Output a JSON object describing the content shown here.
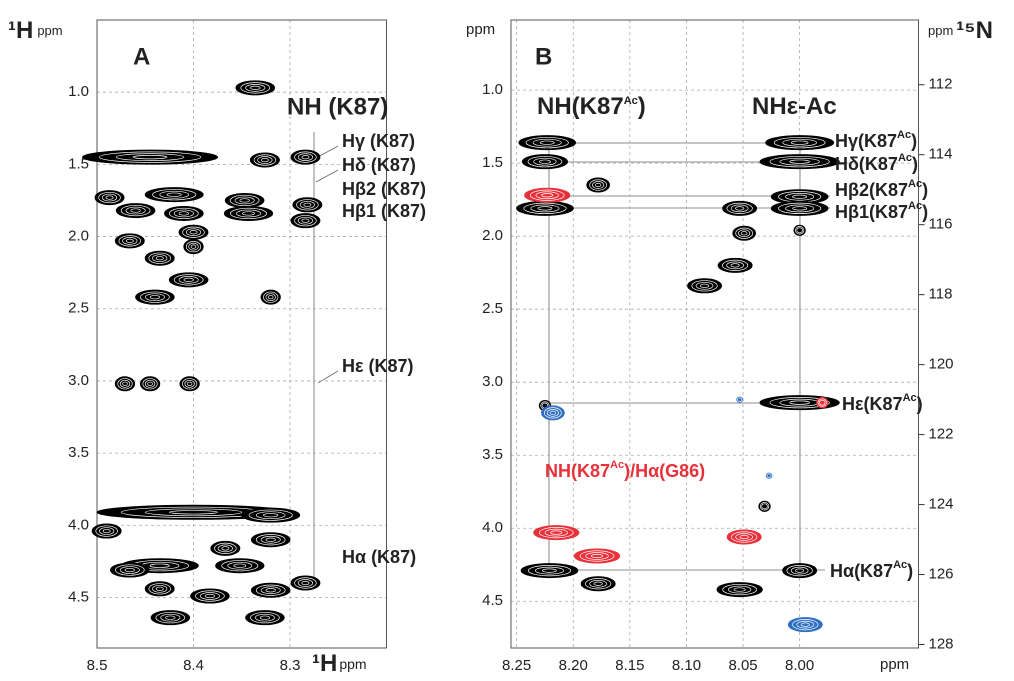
{
  "chart_data": [
    {
      "type": "contour",
      "panel_label": "A",
      "y_label": {
        "nucleus": "¹H",
        "unit": "ppm"
      },
      "x_label": {
        "nucleus": "¹H",
        "unit": "ppm"
      },
      "xlim": [
        8.5,
        8.2
      ],
      "ylim": [
        0.5,
        4.85
      ],
      "xticks": [
        8.5,
        8.4,
        8.3
      ],
      "yticks": [
        {
          "value": 1,
          "label": "1.0"
        },
        1.5,
        {
          "value": 2,
          "label": "2.0"
        },
        2.5,
        {
          "value": 3,
          "label": "3.0"
        },
        3.5,
        {
          "value": 4,
          "label": "4.0"
        },
        4.5
      ],
      "grid": true,
      "annotations": [
        "NH (K87)",
        "Hγ (K87)",
        "Hδ (K87)",
        "Hβ2 (K87)",
        "Hβ1 (K87)",
        "Hε (K87)",
        "Hα (K87)"
      ],
      "series": [
        {
          "color": "#000000",
          "x": [
            8.336,
            8.445,
            8.326,
            8.284,
            8.487,
            8.42,
            8.46,
            8.41,
            8.347,
            8.343,
            8.282,
            8.284,
            8.4,
            8.466,
            8.4,
            8.435,
            8.405,
            8.44,
            8.32,
            8.471,
            8.445,
            8.404,
            8.4,
            8.32,
            8.49,
            8.32,
            8.367,
            8.435,
            8.466,
            8.352,
            8.284,
            8.435,
            8.383,
            8.32,
            8.424,
            8.326
          ],
          "y": [
            0.97,
            1.45,
            1.47,
            1.45,
            1.73,
            1.71,
            1.82,
            1.84,
            1.75,
            1.84,
            1.78,
            1.89,
            1.97,
            2.03,
            2.07,
            2.15,
            2.3,
            2.42,
            2.42,
            3.02,
            3.02,
            3.02,
            3.91,
            3.93,
            4.04,
            4.1,
            4.16,
            4.28,
            4.31,
            4.28,
            4.4,
            4.44,
            4.49,
            4.45,
            4.64,
            4.64
          ],
          "widths": [
            0.04,
            0.14,
            0.03,
            0.03,
            0.03,
            0.06,
            0.04,
            0.04,
            0.04,
            0.05,
            0.03,
            0.03,
            0.03,
            0.03,
            0.02,
            0.03,
            0.04,
            0.04,
            0.02,
            0.02,
            0.02,
            0.02,
            0.2,
            0.06,
            0.03,
            0.04,
            0.03,
            0.08,
            0.04,
            0.05,
            0.03,
            0.03,
            0.04,
            0.04,
            0.04,
            0.04
          ]
        }
      ]
    },
    {
      "type": "contour",
      "panel_label": "B",
      "y_label": "ppm",
      "x_label": "ppm",
      "y2_label": {
        "unit": "ppm",
        "nucleus": "¹⁵N"
      },
      "xlim": [
        8.255,
        7.895
      ],
      "ylim": [
        0.52,
        4.82
      ],
      "y2lim": [
        110.15,
        128.1
      ],
      "xticks": [
        8.25,
        {
          "value": 8.2,
          "label": "8.20"
        },
        8.15,
        {
          "value": 8.1,
          "label": "8.10"
        },
        8.05,
        {
          "value": 8,
          "label": "8.00"
        }
      ],
      "yticks": [
        {
          "value": 1,
          "label": "1.0"
        },
        1.5,
        {
          "value": 2,
          "label": "2.0"
        },
        2.5,
        {
          "value": 3,
          "label": "3.0"
        },
        3.5,
        {
          "value": 4,
          "label": "4.0"
        },
        4.5
      ],
      "y2ticks": [
        112,
        114,
        116,
        118,
        120,
        122,
        124,
        126,
        128
      ],
      "grid": true,
      "annotations": [
        {
          "parts": [
            "NH(K87",
            "Ac",
            ")"
          ]
        },
        {
          "parts": [
            "NHε-Ac"
          ]
        },
        {
          "parts": [
            "Hγ(K87",
            "Ac",
            ")"
          ]
        },
        {
          "parts": [
            "Hδ(K87",
            "Ac",
            ")"
          ]
        },
        {
          "parts": [
            "Hβ2(K87",
            "Ac",
            ")"
          ]
        },
        {
          "parts": [
            "Hβ1(K87",
            "Ac",
            ")"
          ]
        },
        {
          "parts": [
            "Hε(K87",
            "Ac",
            ")"
          ]
        },
        {
          "parts": [
            "Hα(K87",
            "Ac",
            ")"
          ]
        },
        {
          "parts": [
            "NH(K87",
            "Ac",
            ")/Hα(G86)"
          ]
        }
      ],
      "series": [
        {
          "color": "#000000",
          "x": [
            8.223,
            8.225,
            8.0,
            8.0,
            8.178,
            8.0,
            8.0,
            8.225,
            8.053,
            8.049,
            8.0,
            8.057,
            8.084,
            8.0,
            8.225,
            8.221,
            8.178,
            8.053,
            8.0,
            8.031
          ],
          "y": [
            1.36,
            1.49,
            1.36,
            1.49,
            1.65,
            1.73,
            1.81,
            1.81,
            1.81,
            1.98,
            1.96,
            2.2,
            2.34,
            3.14,
            3.16,
            4.29,
            4.38,
            4.42,
            4.29,
            3.85
          ],
          "widths": [
            0.05,
            0.04,
            0.06,
            0.07,
            0.02,
            0.05,
            0.05,
            0.05,
            0.03,
            0.02,
            0.01,
            0.03,
            0.03,
            0.07,
            0.01,
            0.05,
            0.03,
            0.04,
            0.03,
            0.01
          ]
        },
        {
          "color": "#e8313a",
          "x": [
            8.223,
            8.215,
            8.179,
            8.049,
            7.98
          ],
          "y": [
            1.72,
            4.03,
            4.19,
            4.06,
            3.14
          ],
          "widths": [
            0.04,
            0.04,
            0.04,
            0.03,
            0.01
          ]
        },
        {
          "color": "#2f6fc4",
          "x": [
            8.218,
            7.995,
            8.053,
            8.027
          ],
          "y": [
            3.21,
            4.66,
            3.12,
            3.64
          ],
          "widths": [
            0.02,
            0.03,
            0.005,
            0.005
          ]
        }
      ]
    }
  ]
}
